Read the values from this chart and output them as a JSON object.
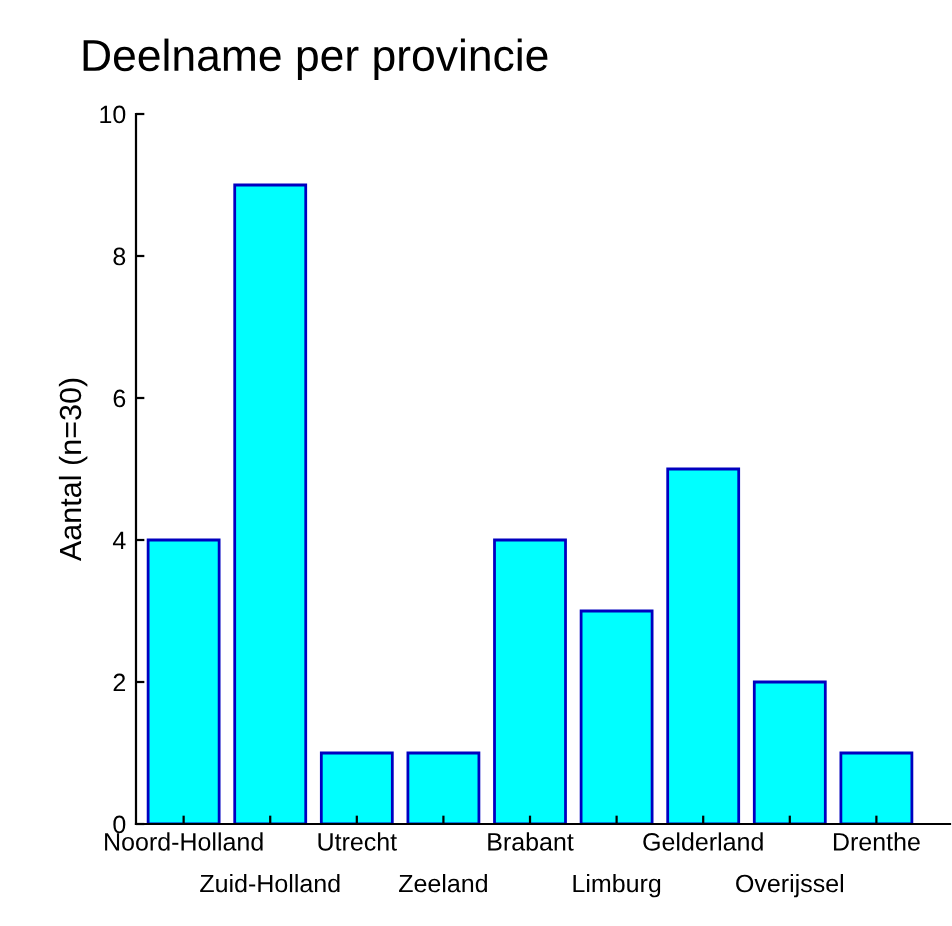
{
  "chart_data": {
    "type": "bar",
    "title": "Deelname per provincie",
    "ylabel": "Aantal (n=30)",
    "categories": [
      "Noord-Holland",
      "Zuid-Holland",
      "Utrecht",
      "Zeeland",
      "Brabant",
      "Limburg",
      "Gelderland",
      "Overijssel",
      "Drenthe"
    ],
    "values": [
      4,
      9,
      1,
      1,
      4,
      3,
      5,
      2,
      1
    ],
    "color": "#00ffff",
    "ylim": [
      0,
      10
    ],
    "yticks": [
      0,
      2,
      4,
      6,
      8,
      10
    ],
    "grid": false,
    "legend": false
  }
}
